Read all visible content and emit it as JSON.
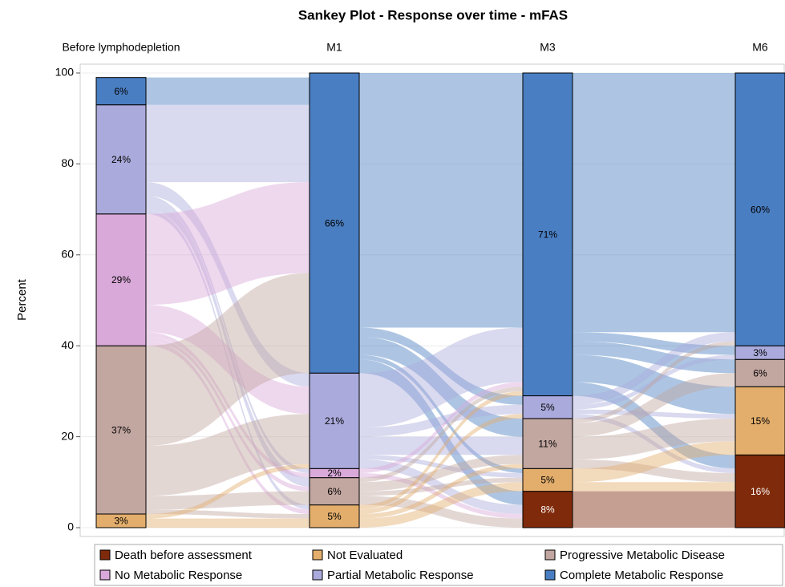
{
  "chart_data": {
    "type": "sankey",
    "title": "Sankey Plot - Response over time - mFAS",
    "y_label": "Percent",
    "categories": [
      "Before lymphodepletion",
      "M1",
      "M3",
      "M6"
    ],
    "ylim": [
      0,
      100
    ],
    "yticks": [
      0,
      20,
      40,
      60,
      80,
      100
    ],
    "grid": true,
    "series": [
      {
        "name": "Death before assessment",
        "color": "#7f2a0a",
        "values": [
          null,
          null,
          8,
          16
        ],
        "value_labels": [
          null,
          null,
          "8%",
          "16%"
        ]
      },
      {
        "name": "Not Evaluated",
        "color": "#e3ae6c",
        "values": [
          3,
          5,
          5,
          15
        ],
        "value_labels": [
          "3%",
          "5%",
          "5%",
          "15%"
        ]
      },
      {
        "name": "Progressive Metabolic Disease",
        "color": "#c2a6a0",
        "values": [
          37,
          6,
          11,
          6
        ],
        "value_labels": [
          "37%",
          "6%",
          "11%",
          "6%"
        ]
      },
      {
        "name": "No Metabolic Response",
        "color": "#d9a9d9",
        "values": [
          29,
          2,
          null,
          null
        ],
        "value_labels": [
          "29%",
          "2%",
          null,
          null
        ]
      },
      {
        "name": "Partial Metabolic Response",
        "color": "#aaaadc",
        "values": [
          24,
          21,
          5,
          3
        ],
        "value_labels": [
          "24%",
          "21%",
          "5%",
          "3%"
        ]
      },
      {
        "name": "Complete Metabolic Response",
        "color": "#4a7ec2",
        "values": [
          6,
          66,
          71,
          60
        ],
        "value_labels": [
          "6%",
          "66%",
          "71%",
          "60%"
        ]
      }
    ],
    "flows": [
      {
        "step": 0,
        "source": 5,
        "target": 5,
        "value": 6
      },
      {
        "step": 0,
        "source": 4,
        "target": 5,
        "value": 17
      },
      {
        "step": 0,
        "source": 4,
        "target": 4,
        "value": 3
      },
      {
        "step": 0,
        "source": 4,
        "target": 3,
        "value": 1
      },
      {
        "step": 0,
        "source": 4,
        "target": 2,
        "value": 2
      },
      {
        "step": 0,
        "source": 4,
        "target": 1,
        "value": 1
      },
      {
        "step": 0,
        "source": 3,
        "target": 5,
        "value": 20
      },
      {
        "step": 0,
        "source": 3,
        "target": 4,
        "value": 6
      },
      {
        "step": 0,
        "source": 3,
        "target": 3,
        "value": 1
      },
      {
        "step": 0,
        "source": 3,
        "target": 2,
        "value": 1
      },
      {
        "step": 0,
        "source": 3,
        "target": 1,
        "value": 1
      },
      {
        "step": 0,
        "source": 2,
        "target": 5,
        "value": 22
      },
      {
        "step": 0,
        "source": 2,
        "target": 4,
        "value": 11
      },
      {
        "step": 0,
        "source": 2,
        "target": 2,
        "value": 3
      },
      {
        "step": 0,
        "source": 2,
        "target": 1,
        "value": 1
      },
      {
        "step": 0,
        "source": 1,
        "target": 1,
        "value": 2
      },
      {
        "step": 0,
        "source": 1,
        "target": 4,
        "value": 1
      },
      {
        "step": 1,
        "source": 5,
        "target": 5,
        "value": 56
      },
      {
        "step": 1,
        "source": 5,
        "target": 4,
        "value": 2
      },
      {
        "step": 1,
        "source": 5,
        "target": 2,
        "value": 4
      },
      {
        "step": 1,
        "source": 5,
        "target": 1,
        "value": 1
      },
      {
        "step": 1,
        "source": 5,
        "target": 0,
        "value": 3
      },
      {
        "step": 1,
        "source": 4,
        "target": 5,
        "value": 12
      },
      {
        "step": 1,
        "source": 4,
        "target": 4,
        "value": 2
      },
      {
        "step": 1,
        "source": 4,
        "target": 2,
        "value": 4
      },
      {
        "step": 1,
        "source": 4,
        "target": 1,
        "value": 1
      },
      {
        "step": 1,
        "source": 4,
        "target": 0,
        "value": 2
      },
      {
        "step": 1,
        "source": 3,
        "target": 5,
        "value": 1
      },
      {
        "step": 1,
        "source": 3,
        "target": 0,
        "value": 1
      },
      {
        "step": 1,
        "source": 2,
        "target": 5,
        "value": 1
      },
      {
        "step": 1,
        "source": 2,
        "target": 2,
        "value": 2
      },
      {
        "step": 1,
        "source": 2,
        "target": 1,
        "value": 1
      },
      {
        "step": 1,
        "source": 2,
        "target": 0,
        "value": 2
      },
      {
        "step": 1,
        "source": 1,
        "target": 5,
        "value": 1
      },
      {
        "step": 1,
        "source": 1,
        "target": 4,
        "value": 1
      },
      {
        "step": 1,
        "source": 1,
        "target": 2,
        "value": 1
      },
      {
        "step": 1,
        "source": 1,
        "target": 1,
        "value": 2
      },
      {
        "step": 2,
        "source": 0,
        "target": 0,
        "value": 8
      },
      {
        "step": 2,
        "source": 5,
        "target": 5,
        "value": 57
      },
      {
        "step": 2,
        "source": 5,
        "target": 4,
        "value": 2
      },
      {
        "step": 2,
        "source": 5,
        "target": 2,
        "value": 3
      },
      {
        "step": 2,
        "source": 5,
        "target": 1,
        "value": 6
      },
      {
        "step": 2,
        "source": 5,
        "target": 0,
        "value": 3
      },
      {
        "step": 2,
        "source": 4,
        "target": 5,
        "value": 2
      },
      {
        "step": 2,
        "source": 4,
        "target": 4,
        "value": 1
      },
      {
        "step": 2,
        "source": 4,
        "target": 1,
        "value": 1
      },
      {
        "step": 2,
        "source": 4,
        "target": 0,
        "value": 1
      },
      {
        "step": 2,
        "source": 2,
        "target": 5,
        "value": 1
      },
      {
        "step": 2,
        "source": 2,
        "target": 2,
        "value": 3
      },
      {
        "step": 2,
        "source": 2,
        "target": 1,
        "value": 5
      },
      {
        "step": 2,
        "source": 2,
        "target": 0,
        "value": 2
      },
      {
        "step": 2,
        "source": 1,
        "target": 1,
        "value": 3
      },
      {
        "step": 2,
        "source": 1,
        "target": 0,
        "value": 2
      }
    ]
  }
}
